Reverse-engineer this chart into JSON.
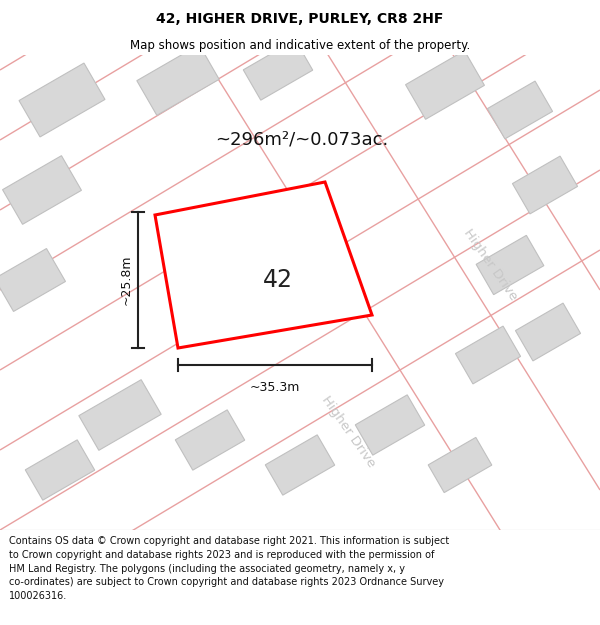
{
  "title": "42, HIGHER DRIVE, PURLEY, CR8 2HF",
  "subtitle": "Map shows position and indicative extent of the property.",
  "area_text": "~296m²/~0.073ac.",
  "width_label": "~35.3m",
  "height_label": "~25.8m",
  "number_label": "42",
  "footer_text": "Contains OS data © Crown copyright and database right 2021. This information is subject to Crown copyright and database rights 2023 and is reproduced with the permission of HM Land Registry. The polygons (including the associated geometry, namely x, y co-ordinates) are subject to Crown copyright and database rights 2023 Ordnance Survey 100026316.",
  "bg_color": "#f0f0f0",
  "map_bg": "#f0f0f0",
  "road_line_color": "#e8a0a0",
  "building_color": "#d8d8d8",
  "building_edge_color": "#c8c8c8",
  "plot_edge_color": "#ff0000",
  "plot_fill_color": "#ffffff",
  "dim_line_color": "#222222",
  "title_color": "#000000",
  "road_label_color": "#c0c0c0",
  "area_text_color": "#111111",
  "footer_color": "#111111"
}
